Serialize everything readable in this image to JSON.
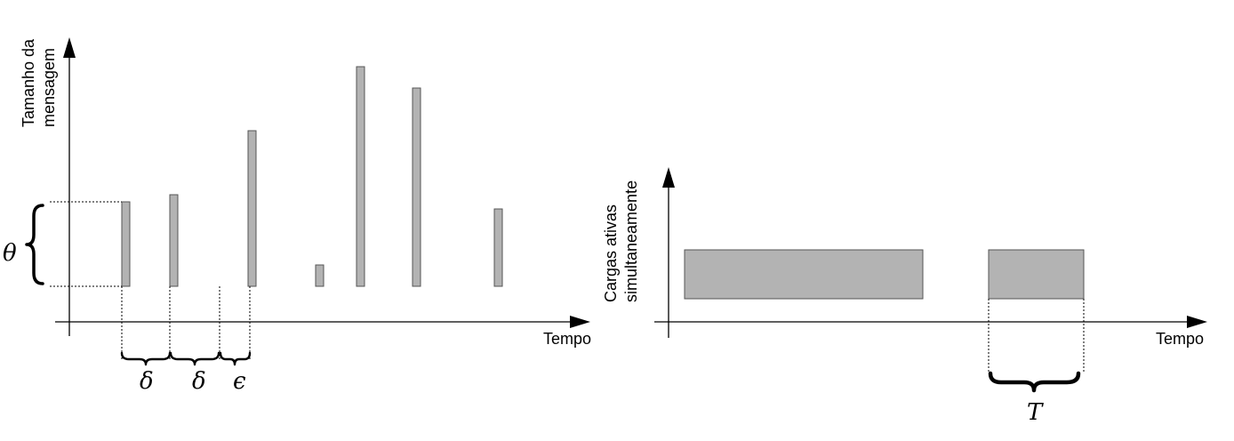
{
  "left_panel": {
    "y_axis_label_line1": "Tamanho da",
    "y_axis_label_line2": "mensagem",
    "x_axis_label": "Tempo",
    "theta_symbol": "θ",
    "delta_symbol_1": "δ",
    "delta_symbol_2": "δ",
    "epsilon_symbol": "ϵ"
  },
  "right_panel": {
    "y_axis_label_line1": "Cargas ativas",
    "y_axis_label_line2": "simultaneamente",
    "x_axis_label": "Tempo",
    "period_symbol": "T"
  },
  "colors": {
    "bar_fill": "#b3b3b3",
    "bar_stroke": "#555555"
  }
}
